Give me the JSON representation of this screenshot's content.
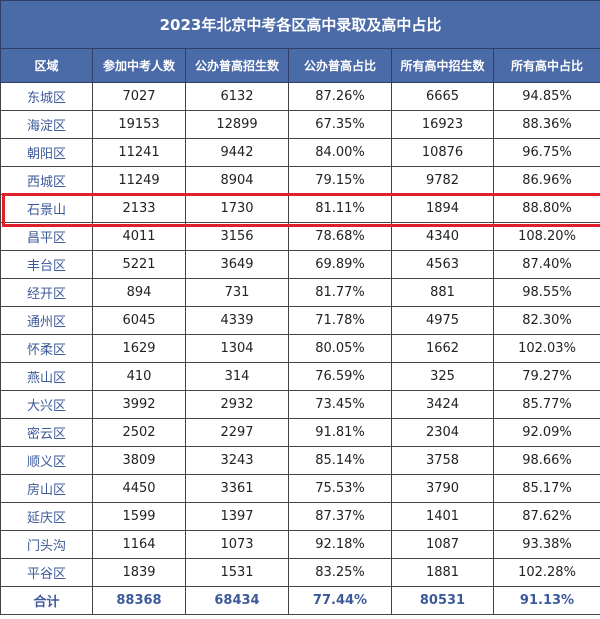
{
  "title": "2023年北京中考各区高中录取及高中占比",
  "columns": [
    "区域",
    "参加中考人数",
    "公办普高招生数",
    "公办普高占比",
    "所有高中招生数",
    "所有高中占比"
  ],
  "rows": [
    [
      "东城区",
      "7027",
      "6132",
      "87.26%",
      "6665",
      "94.85%"
    ],
    [
      "海淀区",
      "19153",
      "12899",
      "67.35%",
      "16923",
      "88.36%"
    ],
    [
      "朝阳区",
      "11241",
      "9442",
      "84.00%",
      "10876",
      "96.75%"
    ],
    [
      "西城区",
      "11249",
      "8904",
      "79.15%",
      "9782",
      "86.96%"
    ],
    [
      "石景山",
      "2133",
      "1730",
      "81.11%",
      "1894",
      "88.80%"
    ],
    [
      "昌平区",
      "4011",
      "3156",
      "78.68%",
      "4340",
      "108.20%"
    ],
    [
      "丰台区",
      "5221",
      "3649",
      "69.89%",
      "4563",
      "87.40%"
    ],
    [
      "经开区",
      "894",
      "731",
      "81.77%",
      "881",
      "98.55%"
    ],
    [
      "通州区",
      "6045",
      "4339",
      "71.78%",
      "4975",
      "82.30%"
    ],
    [
      "怀柔区",
      "1629",
      "1304",
      "80.05%",
      "1662",
      "102.03%"
    ],
    [
      "燕山区",
      "410",
      "314",
      "76.59%",
      "325",
      "79.27%"
    ],
    [
      "大兴区",
      "3992",
      "2932",
      "73.45%",
      "3424",
      "85.77%"
    ],
    [
      "密云区",
      "2502",
      "2297",
      "91.81%",
      "2304",
      "92.09%"
    ],
    [
      "顺义区",
      "3809",
      "3243",
      "85.14%",
      "3758",
      "98.66%"
    ],
    [
      "房山区",
      "4450",
      "3361",
      "75.53%",
      "3790",
      "85.17%"
    ],
    [
      "延庆区",
      "1599",
      "1397",
      "87.37%",
      "1401",
      "87.62%"
    ],
    [
      "门头沟",
      "1164",
      "1073",
      "92.18%",
      "1087",
      "93.38%"
    ],
    [
      "平谷区",
      "1839",
      "1531",
      "83.25%",
      "1881",
      "102.28%"
    ]
  ],
  "total": [
    "合计",
    "88368",
    "68434",
    "77.44%",
    "80531",
    "91.13%"
  ],
  "highlighted_row": "石景山",
  "colors": {
    "header_bg": "#4a6aa8",
    "header_text": "#ffffff",
    "region_text": "#3c5a9a",
    "highlight_border": "#e0202a"
  }
}
